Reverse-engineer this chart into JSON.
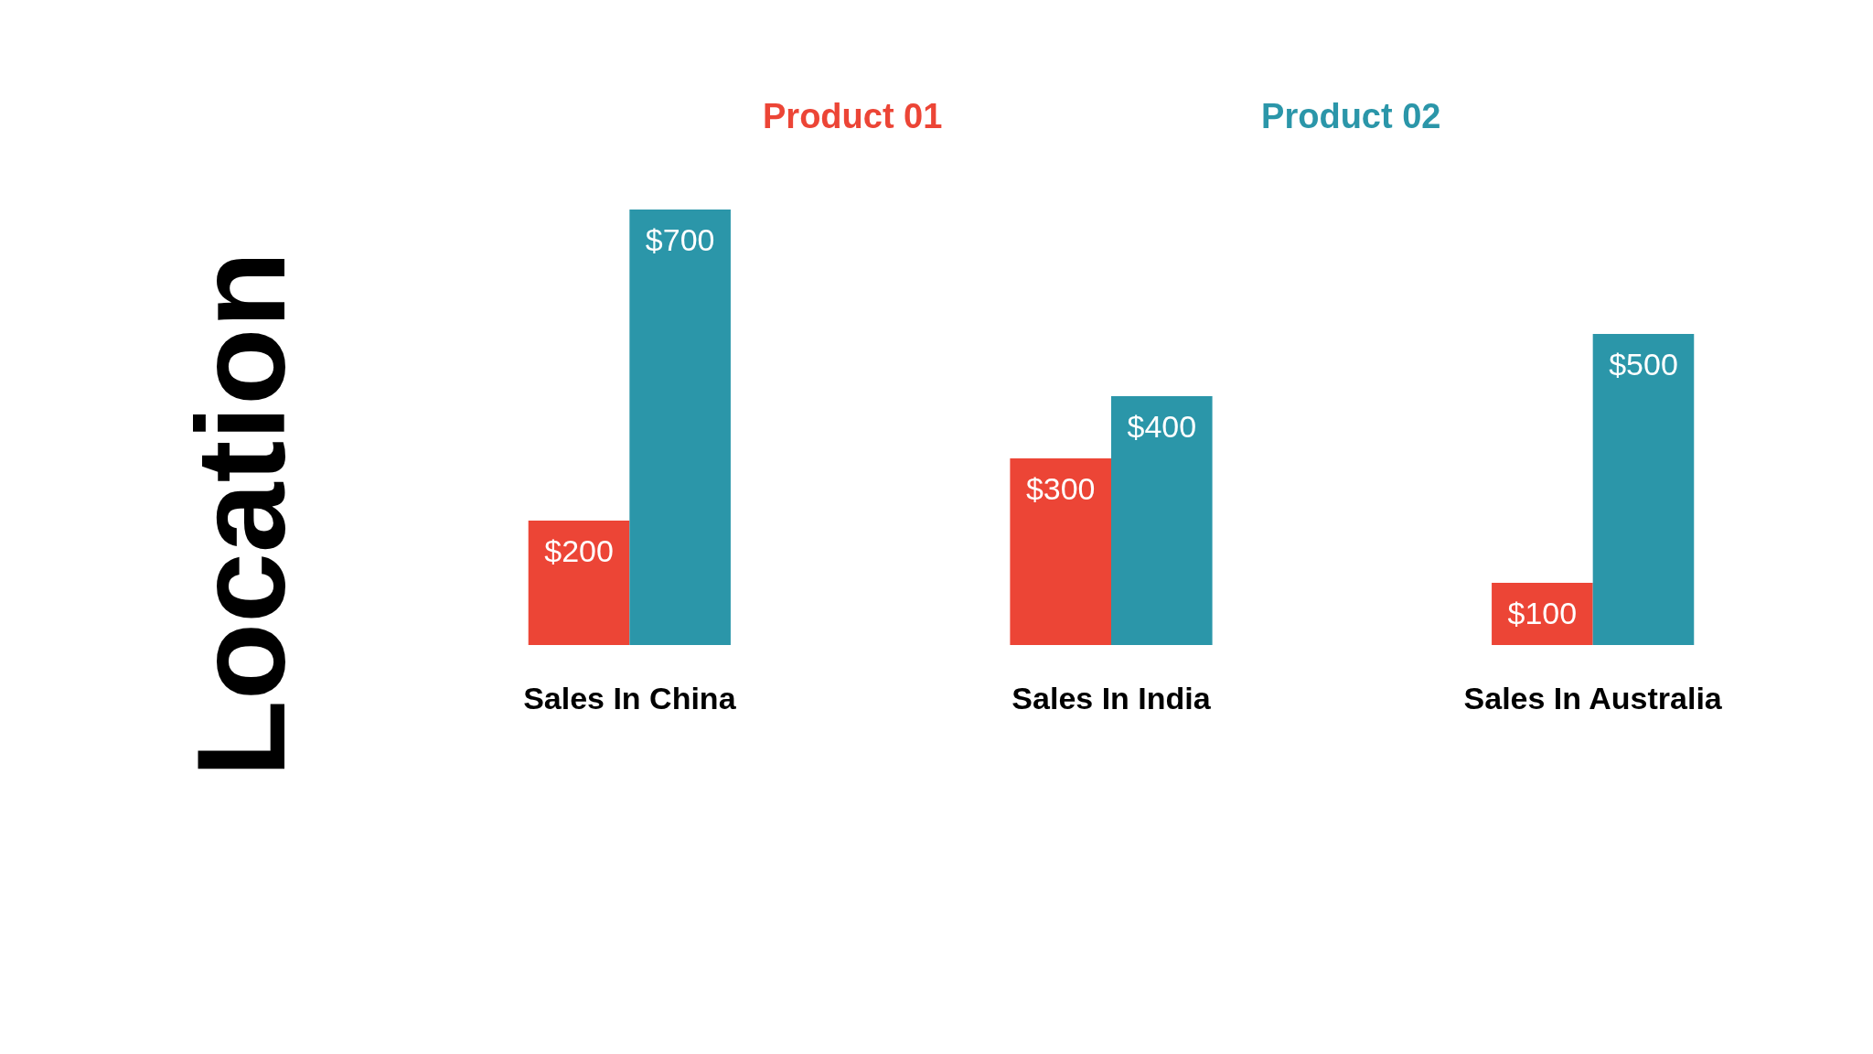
{
  "chart_data": {
    "type": "bar",
    "title": "Location",
    "categories": [
      "Sales In China",
      "Sales In India",
      "Sales In Australia"
    ],
    "series": [
      {
        "name": "Product 01",
        "color": "#ec4536",
        "values": [
          200,
          300,
          100
        ],
        "value_labels": [
          "$200",
          "$300",
          "$100"
        ]
      },
      {
        "name": "Product 02",
        "color": "#2b96a9",
        "values": [
          700,
          400,
          500
        ],
        "value_labels": [
          "$700",
          "$400",
          "$500"
        ]
      }
    ],
    "legend": "top",
    "tick_labels": "x"
  }
}
